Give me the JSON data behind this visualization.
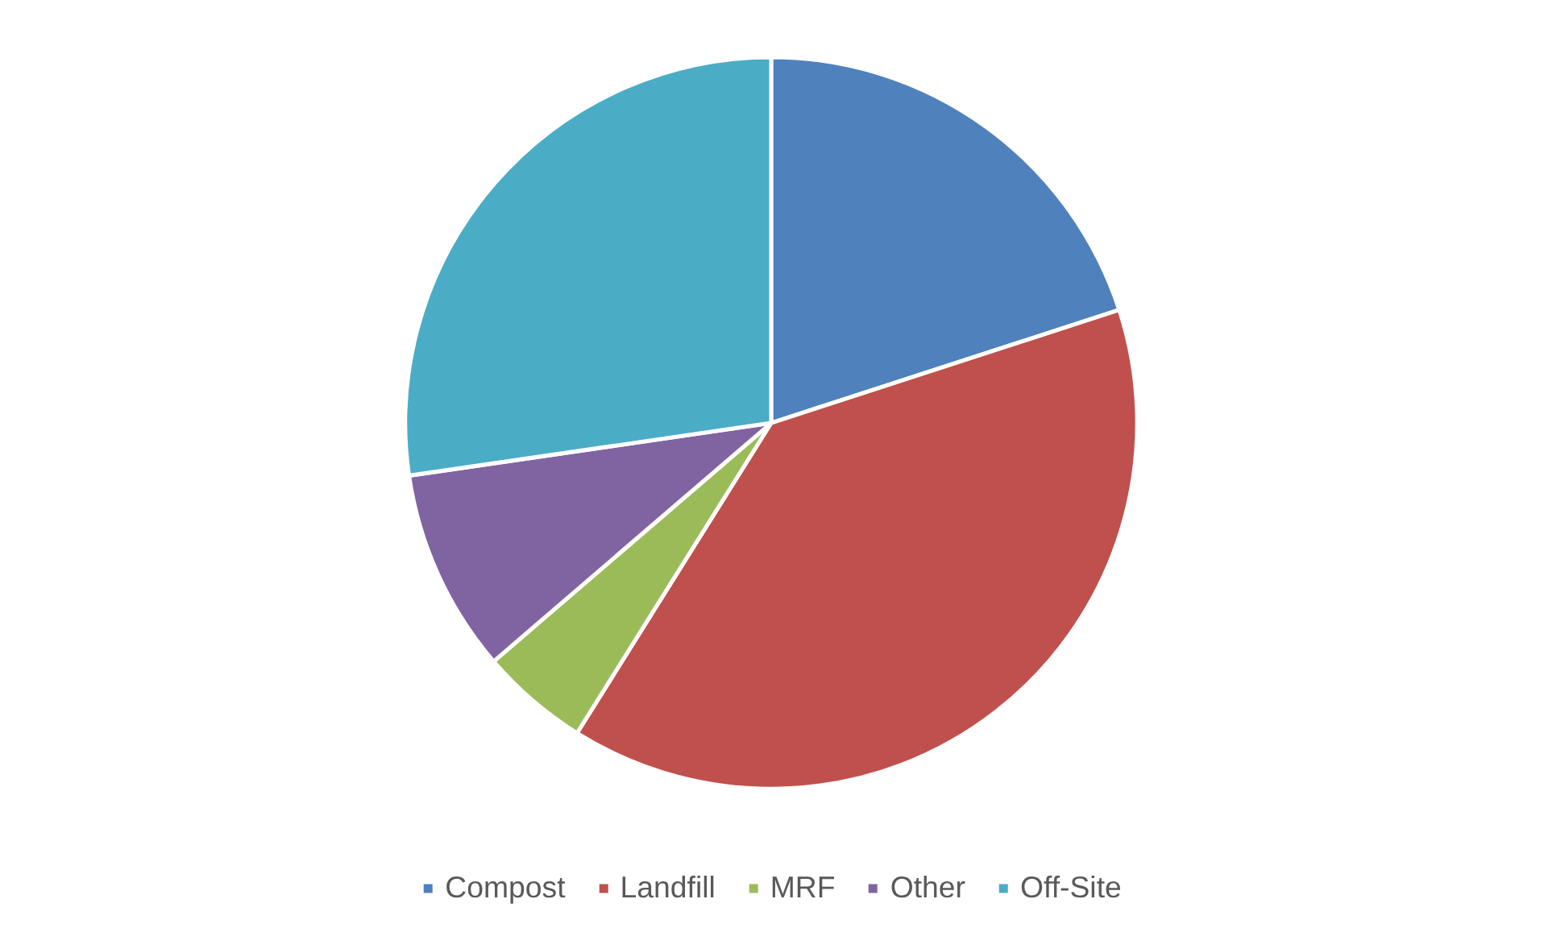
{
  "chart_data": {
    "type": "pie",
    "categories": [
      "Compost",
      "Landfill",
      "MRF",
      "Other",
      "Off-Site"
    ],
    "values": [
      20,
      38.9,
      4.8,
      9,
      27.3
    ],
    "colors": [
      "#4f81bd",
      "#c0504d",
      "#9bbb59",
      "#8064a2",
      "#4bacc6"
    ],
    "legend": "bottom"
  }
}
